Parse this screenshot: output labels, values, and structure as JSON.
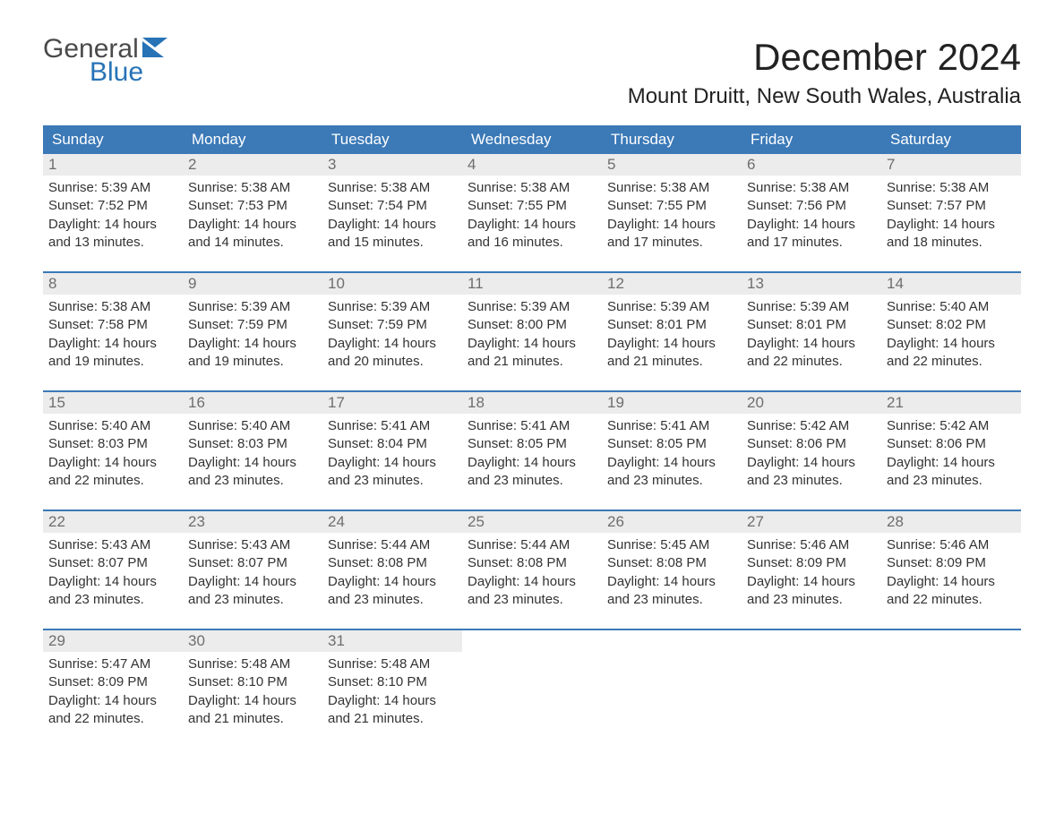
{
  "brand": {
    "general": "General",
    "blue": "Blue"
  },
  "title": {
    "month": "December 2024",
    "location": "Mount Druitt, New South Wales, Australia"
  },
  "colors": {
    "header_bg": "#3b79b7",
    "header_text": "#ffffff",
    "daynum_bg": "#ececec",
    "daynum_text": "#6e6e6e",
    "row_border": "#3b79b7",
    "logo_blue": "#2773b6",
    "logo_grey": "#4a4a4a"
  },
  "weekday_labels": [
    "Sunday",
    "Monday",
    "Tuesday",
    "Wednesday",
    "Thursday",
    "Friday",
    "Saturday"
  ],
  "calendar": {
    "start_weekday_index": 0,
    "num_days": 31,
    "days": [
      {
        "n": 1,
        "sunrise": "5:39 AM",
        "sunset": "7:52 PM",
        "daylight": "14 hours and 13 minutes."
      },
      {
        "n": 2,
        "sunrise": "5:38 AM",
        "sunset": "7:53 PM",
        "daylight": "14 hours and 14 minutes."
      },
      {
        "n": 3,
        "sunrise": "5:38 AM",
        "sunset": "7:54 PM",
        "daylight": "14 hours and 15 minutes."
      },
      {
        "n": 4,
        "sunrise": "5:38 AM",
        "sunset": "7:55 PM",
        "daylight": "14 hours and 16 minutes."
      },
      {
        "n": 5,
        "sunrise": "5:38 AM",
        "sunset": "7:55 PM",
        "daylight": "14 hours and 17 minutes."
      },
      {
        "n": 6,
        "sunrise": "5:38 AM",
        "sunset": "7:56 PM",
        "daylight": "14 hours and 17 minutes."
      },
      {
        "n": 7,
        "sunrise": "5:38 AM",
        "sunset": "7:57 PM",
        "daylight": "14 hours and 18 minutes."
      },
      {
        "n": 8,
        "sunrise": "5:38 AM",
        "sunset": "7:58 PM",
        "daylight": "14 hours and 19 minutes."
      },
      {
        "n": 9,
        "sunrise": "5:39 AM",
        "sunset": "7:59 PM",
        "daylight": "14 hours and 19 minutes."
      },
      {
        "n": 10,
        "sunrise": "5:39 AM",
        "sunset": "7:59 PM",
        "daylight": "14 hours and 20 minutes."
      },
      {
        "n": 11,
        "sunrise": "5:39 AM",
        "sunset": "8:00 PM",
        "daylight": "14 hours and 21 minutes."
      },
      {
        "n": 12,
        "sunrise": "5:39 AM",
        "sunset": "8:01 PM",
        "daylight": "14 hours and 21 minutes."
      },
      {
        "n": 13,
        "sunrise": "5:39 AM",
        "sunset": "8:01 PM",
        "daylight": "14 hours and 22 minutes."
      },
      {
        "n": 14,
        "sunrise": "5:40 AM",
        "sunset": "8:02 PM",
        "daylight": "14 hours and 22 minutes."
      },
      {
        "n": 15,
        "sunrise": "5:40 AM",
        "sunset": "8:03 PM",
        "daylight": "14 hours and 22 minutes."
      },
      {
        "n": 16,
        "sunrise": "5:40 AM",
        "sunset": "8:03 PM",
        "daylight": "14 hours and 23 minutes."
      },
      {
        "n": 17,
        "sunrise": "5:41 AM",
        "sunset": "8:04 PM",
        "daylight": "14 hours and 23 minutes."
      },
      {
        "n": 18,
        "sunrise": "5:41 AM",
        "sunset": "8:05 PM",
        "daylight": "14 hours and 23 minutes."
      },
      {
        "n": 19,
        "sunrise": "5:41 AM",
        "sunset": "8:05 PM",
        "daylight": "14 hours and 23 minutes."
      },
      {
        "n": 20,
        "sunrise": "5:42 AM",
        "sunset": "8:06 PM",
        "daylight": "14 hours and 23 minutes."
      },
      {
        "n": 21,
        "sunrise": "5:42 AM",
        "sunset": "8:06 PM",
        "daylight": "14 hours and 23 minutes."
      },
      {
        "n": 22,
        "sunrise": "5:43 AM",
        "sunset": "8:07 PM",
        "daylight": "14 hours and 23 minutes."
      },
      {
        "n": 23,
        "sunrise": "5:43 AM",
        "sunset": "8:07 PM",
        "daylight": "14 hours and 23 minutes."
      },
      {
        "n": 24,
        "sunrise": "5:44 AM",
        "sunset": "8:08 PM",
        "daylight": "14 hours and 23 minutes."
      },
      {
        "n": 25,
        "sunrise": "5:44 AM",
        "sunset": "8:08 PM",
        "daylight": "14 hours and 23 minutes."
      },
      {
        "n": 26,
        "sunrise": "5:45 AM",
        "sunset": "8:08 PM",
        "daylight": "14 hours and 23 minutes."
      },
      {
        "n": 27,
        "sunrise": "5:46 AM",
        "sunset": "8:09 PM",
        "daylight": "14 hours and 23 minutes."
      },
      {
        "n": 28,
        "sunrise": "5:46 AM",
        "sunset": "8:09 PM",
        "daylight": "14 hours and 22 minutes."
      },
      {
        "n": 29,
        "sunrise": "5:47 AM",
        "sunset": "8:09 PM",
        "daylight": "14 hours and 22 minutes."
      },
      {
        "n": 30,
        "sunrise": "5:48 AM",
        "sunset": "8:10 PM",
        "daylight": "14 hours and 21 minutes."
      },
      {
        "n": 31,
        "sunrise": "5:48 AM",
        "sunset": "8:10 PM",
        "daylight": "14 hours and 21 minutes."
      }
    ],
    "labels": {
      "sunrise": "Sunrise:",
      "sunset": "Sunset:",
      "daylight": "Daylight:"
    }
  }
}
